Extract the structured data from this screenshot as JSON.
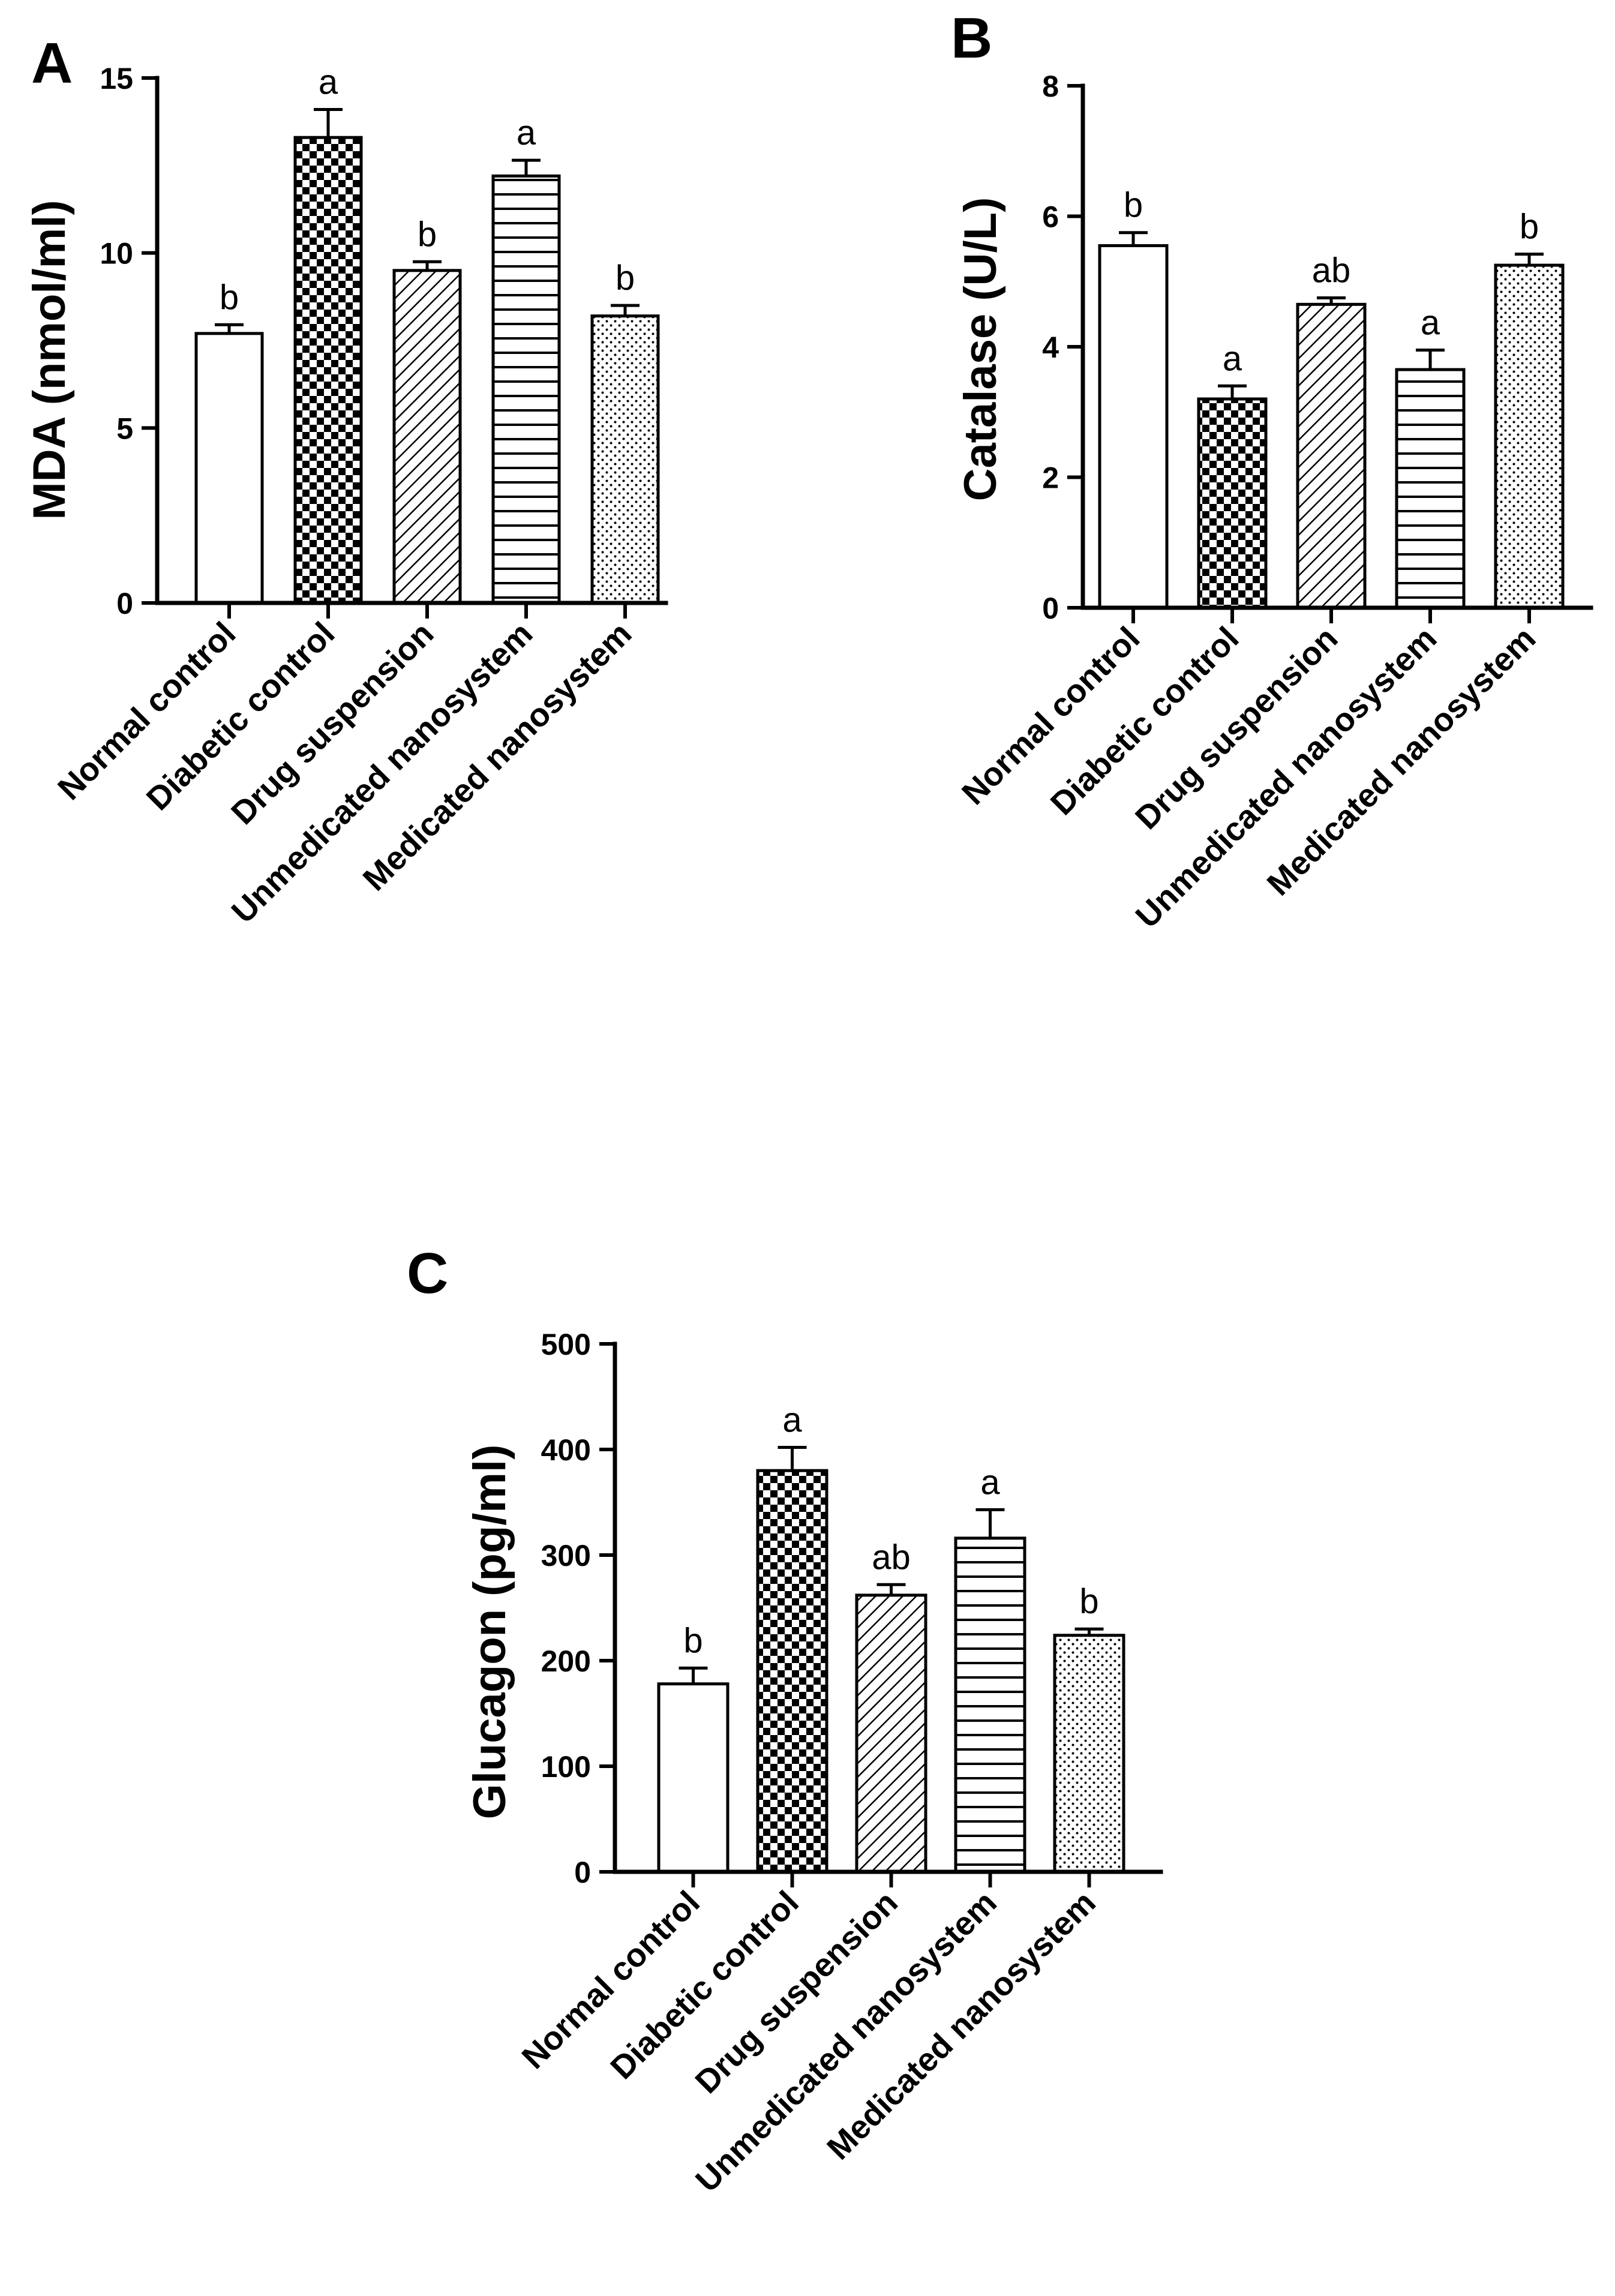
{
  "figure": {
    "panels": [
      "A",
      "B",
      "C"
    ]
  },
  "chart_data": [
    {
      "panel": "A",
      "type": "bar",
      "title": "",
      "xlabel": "",
      "ylabel": "MDA (nmol/ml)",
      "ylim": [
        0,
        15
      ],
      "yticks": [
        0,
        5,
        10,
        15
      ],
      "grid": false,
      "categories": [
        "Normal control",
        "Diabetic control",
        "Drug suspension",
        "Unmedicated nanosystem",
        "Medicated nanosystem"
      ],
      "values": [
        7.7,
        13.3,
        9.5,
        12.2,
        8.2
      ],
      "errors": [
        0.25,
        0.8,
        0.25,
        0.45,
        0.3
      ],
      "significance": [
        "b",
        "a",
        "b",
        "a",
        "b"
      ],
      "patterns": [
        "none",
        "checker",
        "diagonal",
        "horizontal",
        "dots"
      ]
    },
    {
      "panel": "B",
      "type": "bar",
      "title": "",
      "xlabel": "",
      "ylabel": "Catalase (U/L)",
      "ylim": [
        0,
        8
      ],
      "yticks": [
        0,
        2,
        4,
        6,
        8
      ],
      "grid": false,
      "categories": [
        "Normal control",
        "Diabetic control",
        "Drug suspension",
        "Unmedicated nanosystem",
        "Medicated nanosystem"
      ],
      "values": [
        5.55,
        3.2,
        4.65,
        3.65,
        5.25
      ],
      "errors": [
        0.2,
        0.2,
        0.1,
        0.3,
        0.17
      ],
      "significance": [
        "b",
        "a",
        "ab",
        "a",
        "b"
      ],
      "patterns": [
        "none",
        "checker",
        "diagonal",
        "horizontal",
        "dots"
      ]
    },
    {
      "panel": "C",
      "type": "bar",
      "title": "",
      "xlabel": "",
      "ylabel": "Glucagon (pg/ml)",
      "ylim": [
        0,
        500
      ],
      "yticks": [
        0,
        100,
        200,
        300,
        400,
        500
      ],
      "grid": false,
      "categories": [
        "Normal control",
        "Diabetic control",
        "Drug suspension",
        "Unmedicated nanosystem",
        "Medicated nanosystem"
      ],
      "values": [
        178,
        380,
        262,
        316,
        224
      ],
      "errors": [
        15,
        22,
        10,
        27,
        6
      ],
      "significance": [
        "b",
        "a",
        "ab",
        "a",
        "b"
      ],
      "patterns": [
        "none",
        "checker",
        "diagonal",
        "horizontal",
        "dots"
      ]
    }
  ]
}
